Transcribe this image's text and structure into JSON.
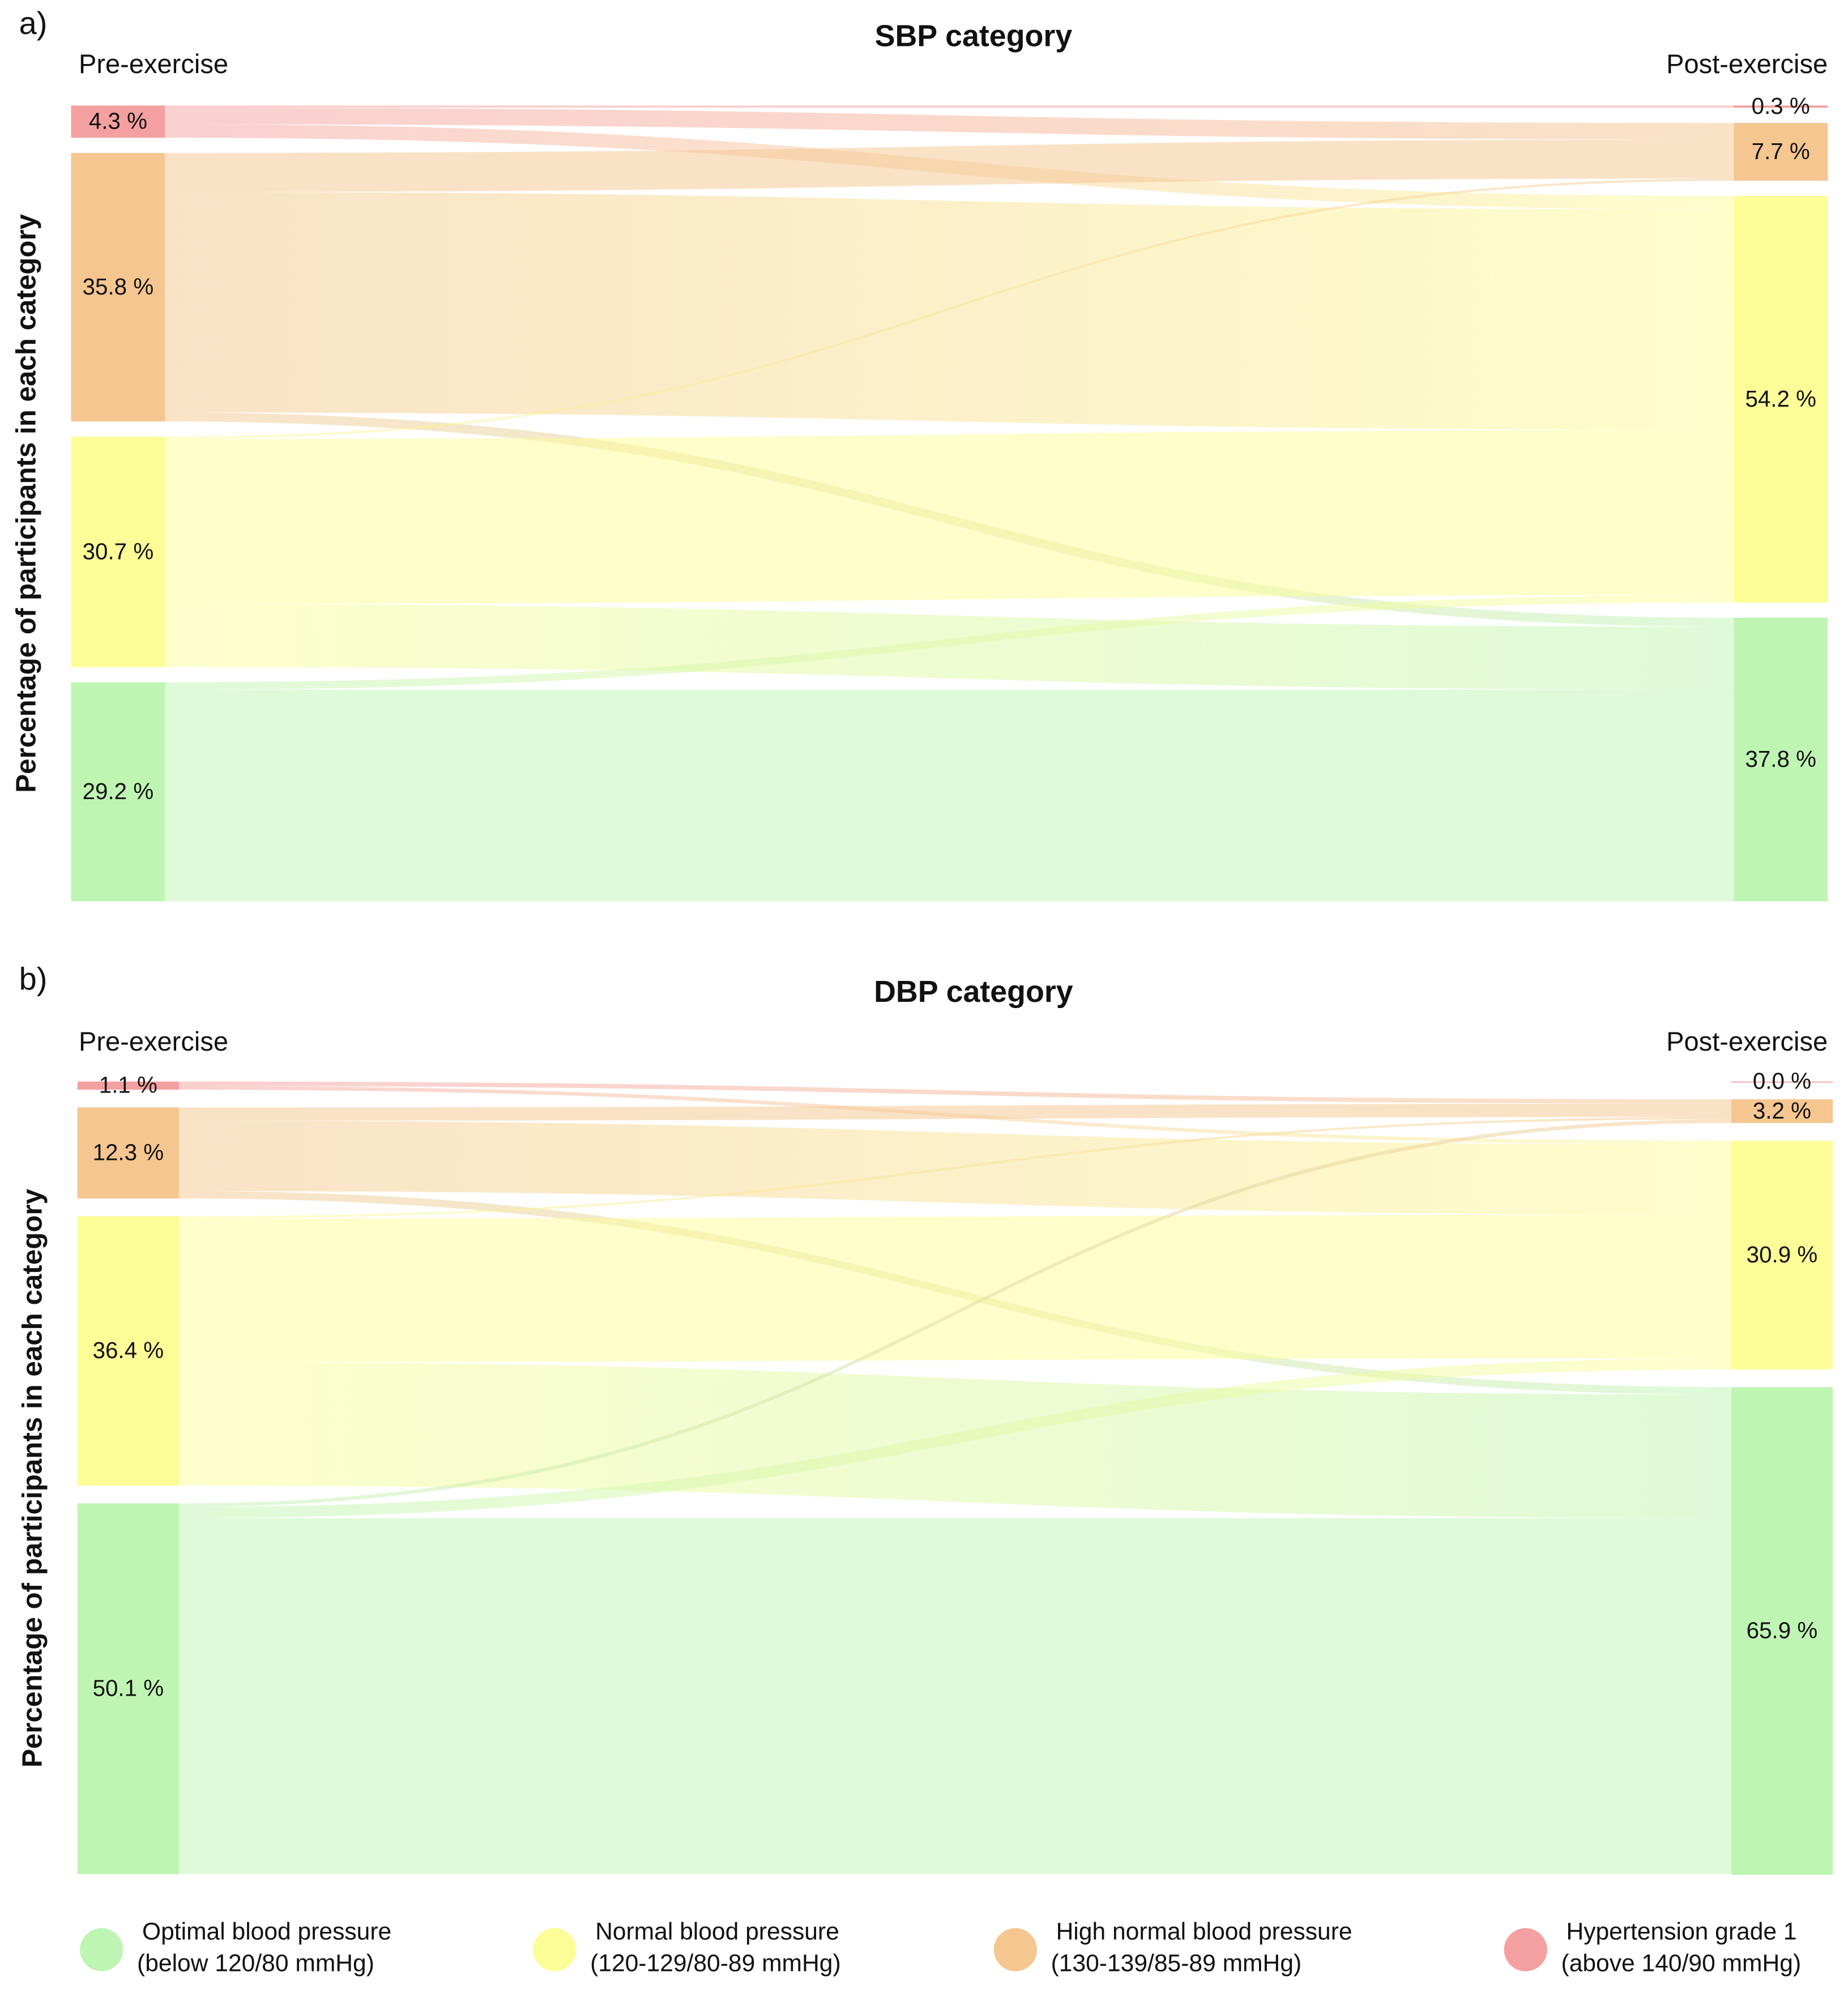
{
  "legend": {
    "categories": [
      {
        "name": "Hypertension grade 1",
        "detail": "(above 140/90 mmHg)",
        "color": "#f4a0a0"
      },
      {
        "name": "High normal blood pressure",
        "detail": "(130-139/85-89 mmHg)",
        "color": "#f5c690"
      },
      {
        "name": "Normal blood pressure",
        "detail": "(120-129/80-89 mmHg)",
        "color": "#fdfd98"
      },
      {
        "name": "Optimal blood pressure",
        "detail": "(below 120/80 mmHg)",
        "color": "#bff5b3"
      }
    ]
  },
  "chart_data": [
    {
      "type": "sankey",
      "panel_label": "a)",
      "title": "SBP category",
      "left_label": "Pre-exercise",
      "right_label": "Post-exercise",
      "y_label": "Percentage of participants in each category",
      "pre": {
        "values": [
          4.3,
          35.8,
          30.7,
          29.2
        ],
        "value_labels": [
          "4.3 %",
          "35.8 %",
          "30.7 %",
          "29.2 %"
        ]
      },
      "post": {
        "values": [
          0.3,
          7.7,
          54.2,
          37.8
        ],
        "value_labels": [
          "0.3 %",
          "7.7 %",
          "54.2 %",
          "37.8 %"
        ]
      },
      "flows": [
        [
          0.3,
          2.2,
          1.8,
          0
        ],
        [
          0,
          5.2,
          29.4,
          1.2
        ],
        [
          0,
          0.3,
          22.0,
          8.4
        ],
        [
          0,
          0,
          1.0,
          28.2
        ]
      ]
    },
    {
      "type": "sankey",
      "panel_label": "b)",
      "title": "DBP category",
      "left_label": "Pre-exercise",
      "right_label": "Post-exercise",
      "y_label": "Percentage of participants in each category",
      "pre": {
        "values": [
          1.1,
          12.3,
          36.4,
          50.1
        ],
        "value_labels": [
          "1.1 %",
          "12.3 %",
          "36.4 %",
          "50.1 %"
        ]
      },
      "post": {
        "values": [
          0.0,
          3.2,
          30.9,
          65.9
        ],
        "value_labels": [
          "0.0 %",
          "3.2 %",
          "30.9 %",
          "65.9 %"
        ]
      },
      "flows": [
        [
          0,
          0.6,
          0.5,
          0
        ],
        [
          0,
          1.8,
          9.5,
          1.0
        ],
        [
          0,
          0.3,
          19.4,
          16.7
        ],
        [
          0,
          0.5,
          1.5,
          48.1
        ]
      ]
    }
  ]
}
